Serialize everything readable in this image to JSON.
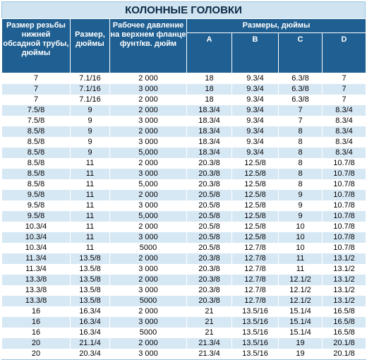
{
  "title": "КОЛОННЫЕ ГОЛОВКИ",
  "headers": {
    "thread": "Размер резьбы нижней обсадной трубы, дюймы",
    "size": "Размер, дюймы",
    "pressure": "Рабочее давление на верхнем фланце фунт/кв. дюйм",
    "dims_group": "Размеры, дюймы",
    "a": "A",
    "b": "B",
    "c": "C",
    "d": "D"
  },
  "rows": [
    [
      "7",
      "7.1/16",
      "2 000",
      "18",
      "9.3/4",
      "6.3/8",
      "7"
    ],
    [
      "7",
      "7.1/16",
      "3 000",
      "18",
      "9.3/4",
      "6.3/8",
      "7"
    ],
    [
      "7",
      "7.1/16",
      "2 000",
      "18",
      "9.3/4",
      "6.3/8",
      "7"
    ],
    [
      "7.5/8",
      "9",
      "2 000",
      "18.3/4",
      "9.3/4",
      "7",
      "8.3/4"
    ],
    [
      "7.5/8",
      "9",
      "3 000",
      "18.3/4",
      "9.3/4",
      "7",
      "8.3/4"
    ],
    [
      "8.5/8",
      "9",
      "2 000",
      "18.3/4",
      "9.3/4",
      "8",
      "8.3/4"
    ],
    [
      "8.5/8",
      "9",
      "3 000",
      "18.3/4",
      "9.3/4",
      "8",
      "8.3/4"
    ],
    [
      "8.5/8",
      "9",
      "5,000",
      "18.3/4",
      "9.3/4",
      "8",
      "8.3/4"
    ],
    [
      "8.5/8",
      "11",
      "2 000",
      "20.3/8",
      "12.5/8",
      "8",
      "10.7/8"
    ],
    [
      "8.5/8",
      "11",
      "3 000",
      "20.3/8",
      "12.5/8",
      "8",
      "10.7/8"
    ],
    [
      "8.5/8",
      "11",
      "5,000",
      "20.3/8",
      "12.5/8",
      "8",
      "10.7/8"
    ],
    [
      "9.5/8",
      "11",
      "2 000",
      "20.5/8",
      "12.5/8",
      "9",
      "10.7/8"
    ],
    [
      "9.5/8",
      "11",
      "3 000",
      "20.5/8",
      "12.5/8",
      "9",
      "10.7/8"
    ],
    [
      "9.5/8",
      "11",
      "5,000",
      "20.5/8",
      "12.5/8",
      "9",
      "10.7/8"
    ],
    [
      "10.3/4",
      "11",
      "2 000",
      "20.5/8",
      "12.5/8",
      "10",
      "10.7/8"
    ],
    [
      "10.3/4",
      "11",
      "3 000",
      "20.5/8",
      "12.5/8",
      "10",
      "10.7/8"
    ],
    [
      "10.3/4",
      "11",
      "5000",
      "20.5/8",
      "12.7/8",
      "10",
      "10.7/8"
    ],
    [
      "11.3/4",
      "13.5/8",
      "2 000",
      "20.3/8",
      "12.7/8",
      "11",
      "13.1/2"
    ],
    [
      "11.3/4",
      "13.5/8",
      "3 000",
      "20.3/8",
      "12.7/8",
      "11",
      "13.1/2"
    ],
    [
      "13.3/8",
      "13.5/8",
      "2 000",
      "20.3/8",
      "12.7/8",
      "12.1/2",
      "13.1/2"
    ],
    [
      "13.3/8",
      "13.5/8",
      "3 000",
      "20.3/8",
      "12.7/8",
      "12.1/2",
      "13.1/2"
    ],
    [
      "13.3/8",
      "13.5/8",
      "5000",
      "20.3/8",
      "12.7/8",
      "12.1/2",
      "13.1/2"
    ],
    [
      "16",
      "16.3/4",
      "2 000",
      "21",
      "13.5/16",
      "15.1/4",
      "16.5/8"
    ],
    [
      "16",
      "16.3/4",
      "3 000",
      "21",
      "13.5/16",
      "15.1/4",
      "16.5/8"
    ],
    [
      "16",
      "16.3/4",
      "5000",
      "21",
      "13.5/16",
      "15.1/4",
      "16.5/8"
    ],
    [
      "20",
      "21.1/4",
      "2 000",
      "21.3/4",
      "13.5/16",
      "19",
      "20.1/8"
    ],
    [
      "20",
      "20.3/4",
      "3 000",
      "21.3/4",
      "13.5/16",
      "19",
      "20.1/8"
    ]
  ]
}
